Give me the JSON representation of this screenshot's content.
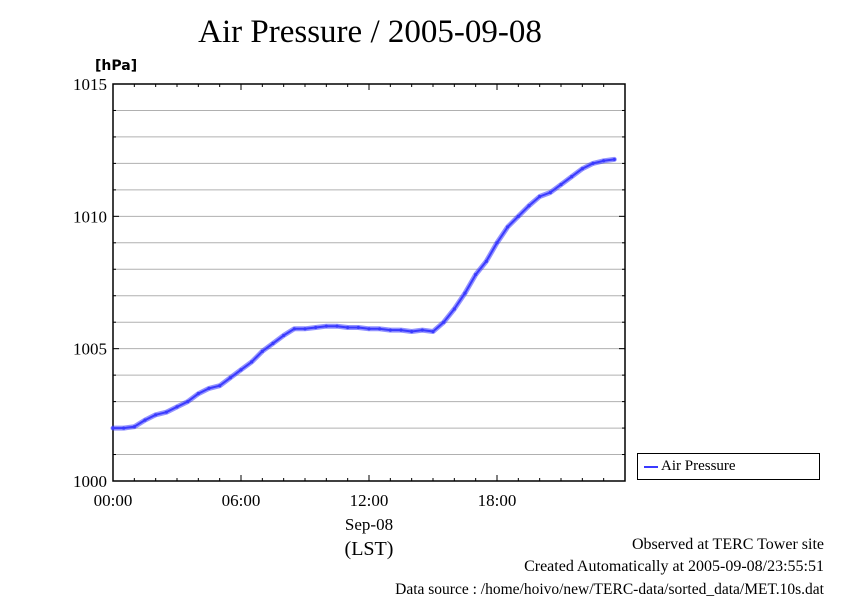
{
  "title": "Air Pressure / 2005-09-08",
  "colors": {
    "series": "#3a3aff",
    "grid": "#b0b0b0"
  },
  "chart_data": {
    "type": "line",
    "title": "Air Pressure / 2005-09-08",
    "ylabel": "[hPa]",
    "xlabel_date": "Sep-08",
    "xlabel_tz": "(LST)",
    "ylim": [
      1000,
      1015
    ],
    "xlim": [
      0,
      24
    ],
    "xunit": "hours (LST)",
    "yticks": [
      1000,
      1005,
      1010,
      1015
    ],
    "ytick_labels": [
      "1000",
      "1005",
      "1010",
      "1015"
    ],
    "xticks": [
      0,
      6,
      12,
      18
    ],
    "xtick_labels": [
      "00:00",
      "06:00",
      "12:00",
      "18:00"
    ],
    "grid": true,
    "legend": "right",
    "series": [
      {
        "name": "Air Pressure",
        "x": [
          0,
          0.5,
          1,
          1.5,
          2,
          2.5,
          3,
          3.5,
          4,
          4.5,
          5,
          5.5,
          6,
          6.5,
          7,
          7.5,
          8,
          8.5,
          9,
          9.5,
          10,
          10.5,
          11,
          11.5,
          12,
          12.5,
          13,
          13.5,
          14,
          14.5,
          15,
          15.5,
          16,
          16.5,
          17,
          17.5,
          18,
          18.5,
          19,
          19.5,
          20,
          20.5,
          21,
          21.5,
          22,
          22.5,
          23,
          23.5
        ],
        "values": [
          1002.0,
          1002.0,
          1002.05,
          1002.3,
          1002.5,
          1002.6,
          1002.8,
          1003.0,
          1003.3,
          1003.5,
          1003.6,
          1003.9,
          1004.2,
          1004.5,
          1004.9,
          1005.2,
          1005.5,
          1005.75,
          1005.75,
          1005.8,
          1005.85,
          1005.85,
          1005.8,
          1005.8,
          1005.75,
          1005.75,
          1005.7,
          1005.7,
          1005.65,
          1005.7,
          1005.65,
          1006.0,
          1006.5,
          1007.1,
          1007.8,
          1008.3,
          1009.0,
          1009.6,
          1010.0,
          1010.4,
          1010.75,
          1010.9,
          1011.2,
          1011.5,
          1011.8,
          1012.0,
          1012.1,
          1012.15
        ]
      }
    ]
  },
  "legend_label": "Air Pressure",
  "footer": {
    "line1": "Observed at TERC Tower site",
    "line2": "Created Automatically at 2005-09-08/23:55:51",
    "line3": "Data source : /home/hoivo/new/TERC-data/sorted_data/MET.10s.dat"
  }
}
